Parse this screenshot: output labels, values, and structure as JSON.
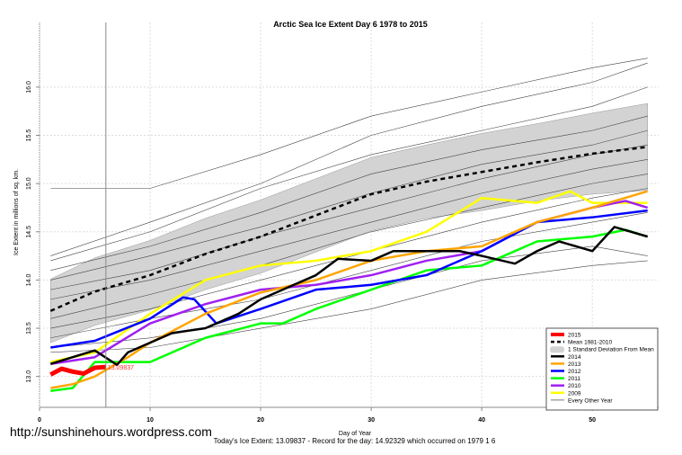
{
  "chart_data": {
    "type": "line",
    "title": "Arctic Sea Ice Extent Day 6 1978 to 2015",
    "xlabel": "Day of Year",
    "ylabel": "Ice Extent in millions of sq. km.",
    "xlim": [
      0,
      56
    ],
    "ylim": [
      12.68,
      16.67
    ],
    "xticks": [
      0,
      10,
      20,
      30,
      40,
      50
    ],
    "yticks": [
      "13.0",
      "13.5",
      "14.0",
      "14.5",
      "15.0",
      "15.5",
      "16.0"
    ],
    "grid": true,
    "legend_placement": "bottom-right",
    "current_day_marker": 6,
    "current_value_label": "13.09837",
    "footer": "Today's Ice Extent: 13.09837  - Record for the day: 14.92329 which occurred on 1979 1 6",
    "mean": {
      "name": "Mean 1981-2010",
      "x": [
        1,
        5,
        10,
        15,
        20,
        25,
        30,
        35,
        40,
        45,
        50,
        55
      ],
      "values": [
        13.68,
        13.88,
        14.05,
        14.27,
        14.45,
        14.67,
        14.89,
        15.02,
        15.12,
        15.22,
        15.31,
        15.38
      ]
    },
    "band": {
      "name": "1 Standard Deviation From Mean",
      "halfwidth": [
        0.33,
        0.35,
        0.36,
        0.37,
        0.38,
        0.38,
        0.38,
        0.38,
        0.4,
        0.4,
        0.42,
        0.45
      ]
    },
    "series": [
      {
        "name": "2015",
        "color": "#ff0000",
        "width": 5,
        "x": [
          1,
          2,
          3,
          4,
          5,
          6
        ],
        "values": [
          13.02,
          13.08,
          13.05,
          13.03,
          13.09,
          13.098
        ]
      },
      {
        "name": "2014",
        "color": "#000000",
        "width": 2.5,
        "x": [
          1,
          3,
          5,
          7,
          8,
          10,
          12,
          15,
          18,
          20,
          22,
          25,
          27,
          30,
          32,
          35,
          38,
          40,
          43,
          45,
          47,
          50,
          52,
          55
        ],
        "values": [
          13.13,
          13.2,
          13.27,
          13.12,
          13.25,
          13.35,
          13.45,
          13.5,
          13.65,
          13.8,
          13.9,
          14.05,
          14.22,
          14.2,
          14.3,
          14.3,
          14.3,
          14.25,
          14.17,
          14.3,
          14.4,
          14.3,
          14.55,
          14.45
        ]
      },
      {
        "name": "2013",
        "color": "#ffa500",
        "width": 2.5,
        "x": [
          1,
          3,
          5,
          8,
          10,
          15,
          20,
          25,
          30,
          35,
          40,
          45,
          50,
          55
        ],
        "values": [
          12.88,
          12.92,
          13.0,
          13.2,
          13.35,
          13.65,
          13.87,
          14.0,
          14.2,
          14.3,
          14.35,
          14.6,
          14.75,
          14.92
        ]
      },
      {
        "name": "2012",
        "color": "#0000ff",
        "width": 2.5,
        "x": [
          1,
          5,
          10,
          13,
          14,
          16,
          20,
          25,
          30,
          35,
          40,
          45,
          50,
          55
        ],
        "values": [
          13.3,
          13.37,
          13.6,
          13.82,
          13.8,
          13.55,
          13.7,
          13.9,
          13.95,
          14.05,
          14.3,
          14.6,
          14.65,
          14.72
        ]
      },
      {
        "name": "2011",
        "color": "#00ff00",
        "width": 2.5,
        "x": [
          1,
          3,
          5,
          10,
          15,
          20,
          22,
          25,
          30,
          35,
          40,
          45,
          50,
          53,
          55
        ],
        "values": [
          12.85,
          12.88,
          13.15,
          13.15,
          13.4,
          13.55,
          13.55,
          13.7,
          13.9,
          14.1,
          14.15,
          14.4,
          14.45,
          14.52,
          14.45
        ]
      },
      {
        "name": "2010",
        "color": "#a020f0",
        "width": 2.5,
        "x": [
          1,
          5,
          10,
          15,
          20,
          25,
          30,
          35,
          40,
          45,
          50,
          53,
          55
        ],
        "values": [
          13.13,
          13.2,
          13.55,
          13.75,
          13.9,
          13.95,
          14.05,
          14.2,
          14.3,
          14.6,
          14.75,
          14.82,
          14.75
        ]
      },
      {
        "name": "2009",
        "color": "#ffff00",
        "width": 2.5,
        "x": [
          1,
          5,
          10,
          15,
          20,
          25,
          30,
          35,
          40,
          45,
          48,
          50,
          55
        ],
        "values": [
          13.15,
          13.25,
          13.65,
          14.0,
          14.15,
          14.2,
          14.3,
          14.5,
          14.85,
          14.8,
          14.92,
          14.8,
          14.8
        ]
      }
    ],
    "other_years": {
      "name": "Every Other Year",
      "color": "#555555",
      "x": [
        1,
        10,
        20,
        30,
        40,
        50,
        55
      ],
      "series": [
        [
          14.95,
          14.95,
          15.3,
          15.7,
          15.95,
          16.2,
          16.3
        ],
        [
          14.25,
          14.6,
          15.0,
          15.5,
          15.8,
          16.05,
          16.25
        ],
        [
          14.2,
          14.5,
          14.95,
          15.3,
          15.55,
          15.8,
          16.0
        ],
        [
          14.1,
          14.35,
          14.7,
          15.1,
          15.35,
          15.55,
          15.7
        ],
        [
          14.0,
          14.25,
          14.55,
          14.9,
          15.2,
          15.4,
          15.55
        ],
        [
          13.9,
          14.1,
          14.45,
          14.75,
          15.05,
          15.3,
          15.4
        ],
        [
          13.8,
          14.0,
          14.3,
          14.6,
          14.9,
          15.15,
          15.25
        ],
        [
          13.6,
          13.85,
          14.15,
          14.5,
          14.75,
          15.0,
          15.1
        ],
        [
          13.5,
          13.7,
          14.0,
          14.3,
          14.6,
          14.85,
          14.95
        ],
        [
          13.4,
          13.6,
          13.8,
          14.1,
          14.4,
          14.6,
          14.7
        ],
        [
          13.3,
          13.4,
          13.6,
          13.9,
          14.2,
          14.35,
          14.25
        ],
        [
          13.25,
          13.3,
          13.5,
          13.7,
          14.0,
          14.15,
          14.2
        ]
      ]
    }
  }
}
